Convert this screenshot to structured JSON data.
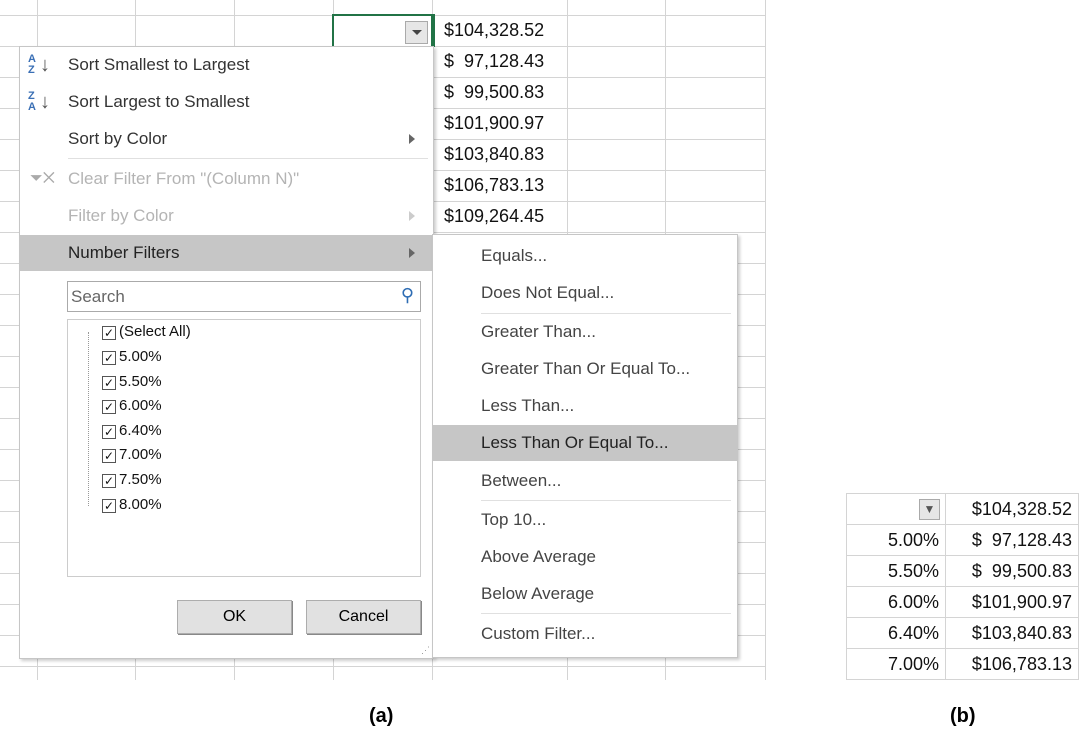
{
  "panel_a": {
    "caption": "(a)",
    "column_values": [
      "$104,328.52",
      "$  97,128.43",
      "$  99,500.83",
      "$101,900.97",
      "$103,840.83",
      "$106,783.13",
      "$109,264.45"
    ],
    "menu": {
      "items": [
        {
          "label": "Sort Smallest to Largest",
          "icon": "sort-az-icon",
          "enabled": true
        },
        {
          "label": "Sort Largest to Smallest",
          "icon": "sort-za-icon",
          "enabled": true
        },
        {
          "label": "Sort by Color",
          "enabled": true,
          "submenu": true
        },
        {
          "label": "Clear Filter From \"(Column N)\"",
          "icon": "clear-filter-icon",
          "enabled": false
        },
        {
          "label": "Filter by Color",
          "enabled": false,
          "submenu": true
        },
        {
          "label": "Number Filters",
          "enabled": true,
          "submenu": true,
          "highlighted": true
        }
      ],
      "search_placeholder": "Search",
      "checklist": [
        "(Select All)",
        "5.00%",
        "5.50%",
        "6.00%",
        "6.40%",
        "7.00%",
        "7.50%",
        "8.00%"
      ],
      "ok_label": "OK",
      "cancel_label": "Cancel"
    },
    "submenu": [
      "Equals...",
      "Does Not Equal...",
      "Greater Than...",
      "Greater Than Or Equal To...",
      "Less Than...",
      "Less Than Or Equal To...",
      "Between...",
      "Top 10...",
      "Above Average",
      "Below Average",
      "Custom Filter..."
    ],
    "submenu_highlighted": "Less Than Or Equal To..."
  },
  "panel_b": {
    "caption": "(b)",
    "rows": [
      [
        "",
        "$104,328.52"
      ],
      [
        "5.00%",
        "$  97,128.43"
      ],
      [
        "5.50%",
        "$  99,500.83"
      ],
      [
        "6.00%",
        "$101,900.97"
      ],
      [
        "6.40%",
        "$103,840.83"
      ],
      [
        "7.00%",
        "$106,783.13"
      ]
    ]
  },
  "colors": {
    "selection_border": "#217346",
    "highlight": "#c6c6c6"
  }
}
